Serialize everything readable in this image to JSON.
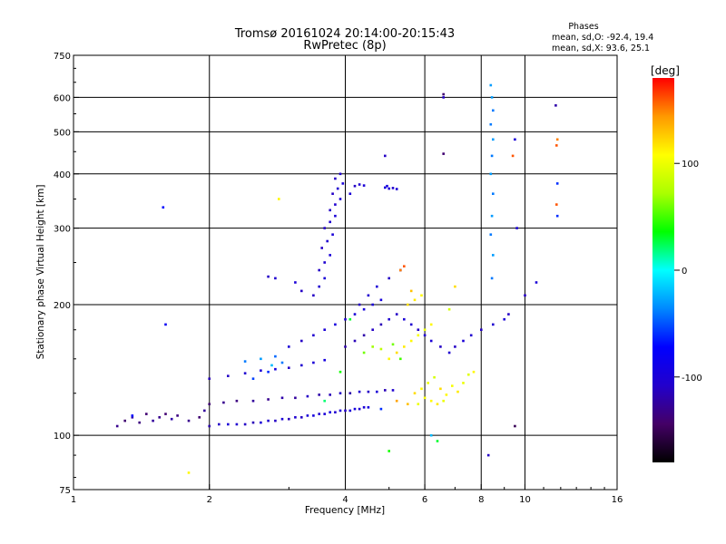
{
  "chart_data": {
    "type": "scatter",
    "title": "Tromsø 20161024 20:14:00-20:15:43",
    "subtitle": "RwPretec (8p)",
    "xlabel": "Frequency [MHz]",
    "ylabel": "Stationary phase Virtual Height [km]",
    "x_scale": "log",
    "y_scale": "log",
    "xlim": [
      1,
      16
    ],
    "ylim": [
      75,
      750
    ],
    "x_ticks": [
      1,
      2,
      4,
      6,
      8,
      10,
      16
    ],
    "y_ticks": [
      75,
      100,
      200,
      300,
      400,
      500,
      600,
      750
    ],
    "grid": true,
    "phases_box": {
      "title": "Phases",
      "line_o": "mean, sd,O:  -92.4, 19.4",
      "line_x": "mean, sd,X:  93.6, 25.1"
    },
    "colorbar": {
      "label": "[deg]",
      "ticks": [
        100,
        0,
        -100
      ],
      "range": [
        -180,
        180
      ],
      "colormap": "rainbow"
    },
    "series": [
      {
        "values": [
          [
            1.25,
            105,
            -130
          ],
          [
            1.3,
            108,
            -140
          ],
          [
            1.35,
            110,
            -120
          ],
          [
            1.4,
            107,
            -135
          ],
          [
            1.45,
            112,
            -140
          ],
          [
            1.5,
            108,
            -125
          ],
          [
            1.55,
            110,
            -130
          ],
          [
            1.6,
            112,
            -140
          ],
          [
            1.65,
            109,
            -120
          ],
          [
            1.7,
            111,
            -135
          ],
          [
            1.8,
            108,
            -130
          ],
          [
            1.9,
            110,
            -140
          ],
          [
            1.95,
            114,
            -125
          ],
          [
            1.35,
            111,
            -70
          ],
          [
            1.6,
            180,
            -80
          ],
          [
            1.58,
            335,
            -70
          ],
          [
            2.0,
            105,
            -120
          ],
          [
            2.1,
            106,
            -110
          ],
          [
            2.2,
            106,
            -100
          ],
          [
            2.3,
            106,
            -105
          ],
          [
            2.4,
            106,
            -110
          ],
          [
            2.5,
            107,
            -115
          ],
          [
            2.6,
            107,
            -100
          ],
          [
            2.7,
            108,
            -105
          ],
          [
            2.8,
            108,
            -110
          ],
          [
            2.9,
            109,
            -100
          ],
          [
            3.0,
            109,
            -115
          ],
          [
            3.1,
            110,
            -105
          ],
          [
            3.2,
            110,
            -110
          ],
          [
            3.3,
            111,
            -100
          ],
          [
            3.4,
            111,
            -95
          ],
          [
            3.5,
            112,
            -105
          ],
          [
            3.6,
            112,
            -100
          ],
          [
            3.7,
            113,
            -95
          ],
          [
            3.8,
            113,
            -105
          ],
          [
            3.9,
            114,
            -100
          ],
          [
            4.0,
            114,
            -110
          ],
          [
            4.1,
            114,
            -100
          ],
          [
            4.2,
            115,
            -95
          ],
          [
            4.3,
            115,
            -105
          ],
          [
            4.4,
            116,
            -100
          ],
          [
            4.5,
            116,
            -95
          ],
          [
            2.0,
            118,
            -140
          ],
          [
            2.15,
            119,
            -130
          ],
          [
            2.3,
            120,
            -135
          ],
          [
            2.5,
            120,
            -125
          ],
          [
            2.7,
            121,
            -130
          ],
          [
            2.9,
            122,
            -120
          ],
          [
            3.1,
            122,
            -125
          ],
          [
            3.3,
            123,
            -110
          ],
          [
            3.5,
            124,
            -120
          ],
          [
            3.7,
            124,
            -115
          ],
          [
            3.9,
            125,
            -110
          ],
          [
            4.1,
            125,
            -120
          ],
          [
            4.3,
            126,
            -105
          ],
          [
            4.5,
            126,
            -110
          ],
          [
            4.7,
            126,
            -100
          ],
          [
            4.9,
            127,
            -115
          ],
          [
            5.1,
            127,
            -105
          ],
          [
            2.0,
            135,
            -115
          ],
          [
            2.2,
            137,
            -110
          ],
          [
            2.4,
            139,
            -105
          ],
          [
            2.6,
            141,
            -100
          ],
          [
            2.8,
            142,
            -95
          ],
          [
            3.0,
            143,
            -110
          ],
          [
            3.2,
            145,
            -105
          ],
          [
            3.4,
            147,
            -100
          ],
          [
            3.6,
            149,
            -95
          ],
          [
            2.4,
            148,
            -40
          ],
          [
            2.6,
            150,
            -30
          ],
          [
            2.75,
            145,
            -20
          ],
          [
            2.9,
            147,
            -40
          ],
          [
            2.5,
            135,
            -55
          ],
          [
            2.7,
            140,
            -60
          ],
          [
            2.8,
            152,
            -45
          ],
          [
            3.0,
            160,
            -100
          ],
          [
            3.2,
            165,
            -110
          ],
          [
            3.4,
            170,
            -105
          ],
          [
            3.6,
            175,
            -100
          ],
          [
            3.8,
            180,
            -95
          ],
          [
            4.0,
            185,
            -105
          ],
          [
            4.2,
            190,
            -100
          ],
          [
            4.4,
            195,
            -95
          ],
          [
            4.6,
            200,
            -100
          ],
          [
            4.8,
            205,
            -95
          ],
          [
            3.4,
            210,
            -110
          ],
          [
            3.5,
            220,
            -105
          ],
          [
            3.6,
            230,
            -100
          ],
          [
            3.5,
            240,
            -110
          ],
          [
            3.6,
            250,
            -105
          ],
          [
            3.7,
            260,
            -100
          ],
          [
            3.55,
            270,
            -110
          ],
          [
            3.65,
            280,
            -105
          ],
          [
            3.75,
            290,
            -100
          ],
          [
            3.6,
            300,
            -110
          ],
          [
            3.7,
            310,
            -105
          ],
          [
            3.8,
            320,
            -100
          ],
          [
            3.7,
            330,
            -110
          ],
          [
            3.8,
            340,
            -105
          ],
          [
            3.9,
            350,
            -100
          ],
          [
            3.75,
            360,
            -110
          ],
          [
            3.85,
            370,
            -105
          ],
          [
            3.95,
            380,
            -100
          ],
          [
            3.8,
            390,
            -110
          ],
          [
            3.9,
            400,
            -105
          ],
          [
            4.2,
            375,
            -110
          ],
          [
            4.3,
            378,
            -105
          ],
          [
            4.4,
            376,
            -100
          ],
          [
            4.9,
            372,
            -95
          ],
          [
            5.0,
            370,
            -100
          ],
          [
            5.1,
            371,
            -105
          ],
          [
            5.2,
            369,
            -100
          ],
          [
            4.95,
            375,
            -95
          ],
          [
            4.9,
            440,
            -110
          ],
          [
            4.1,
            360,
            -100
          ],
          [
            2.7,
            232,
            -110
          ],
          [
            2.8,
            230,
            -105
          ],
          [
            3.1,
            225,
            -100
          ],
          [
            3.2,
            215,
            -110
          ],
          [
            4.0,
            160,
            -120
          ],
          [
            4.2,
            165,
            -115
          ],
          [
            4.4,
            170,
            -120
          ],
          [
            4.6,
            175,
            -110
          ],
          [
            4.8,
            180,
            -115
          ],
          [
            5.0,
            185,
            -105
          ],
          [
            5.2,
            190,
            -110
          ],
          [
            5.4,
            185,
            -100
          ],
          [
            5.6,
            180,
            -105
          ],
          [
            5.8,
            175,
            -110
          ],
          [
            6.0,
            170,
            -105
          ],
          [
            6.2,
            165,
            -100
          ],
          [
            6.5,
            160,
            -110
          ],
          [
            6.8,
            155,
            -105
          ],
          [
            7.0,
            160,
            -110
          ],
          [
            7.3,
            165,
            -100
          ],
          [
            7.6,
            170,
            -105
          ],
          [
            8.0,
            175,
            -110
          ],
          [
            8.5,
            180,
            -105
          ],
          [
            9.0,
            185,
            -100
          ],
          [
            9.2,
            190,
            -110
          ],
          [
            4.3,
            200,
            -110
          ],
          [
            4.5,
            210,
            -105
          ],
          [
            4.7,
            220,
            -100
          ],
          [
            5.0,
            230,
            -110
          ],
          [
            5.3,
            240,
            -105
          ],
          [
            6.6,
            600,
            -110
          ],
          [
            6.6,
            610,
            -140
          ],
          [
            6.6,
            445,
            -140
          ],
          [
            8.4,
            640,
            -30
          ],
          [
            8.45,
            600,
            -30
          ],
          [
            8.5,
            560,
            -40
          ],
          [
            8.4,
            520,
            -40
          ],
          [
            8.5,
            480,
            -30
          ],
          [
            8.45,
            440,
            -40
          ],
          [
            8.4,
            400,
            -30
          ],
          [
            8.5,
            360,
            -40
          ],
          [
            8.45,
            320,
            -30
          ],
          [
            8.4,
            290,
            -40
          ],
          [
            8.5,
            260,
            -30
          ],
          [
            8.45,
            230,
            -40
          ],
          [
            9.5,
            480,
            -100
          ],
          [
            9.4,
            440,
            160
          ],
          [
            9.6,
            300,
            -100
          ],
          [
            9.5,
            105,
            -150
          ],
          [
            11.7,
            575,
            -120
          ],
          [
            11.8,
            480,
            150
          ],
          [
            11.75,
            465,
            160
          ],
          [
            11.8,
            380,
            -60
          ],
          [
            11.75,
            340,
            160
          ],
          [
            11.8,
            320,
            -60
          ],
          [
            10.6,
            225,
            -100
          ],
          [
            10.0,
            210,
            -110
          ],
          [
            8.3,
            90,
            -110
          ],
          [
            5.0,
            92,
            40
          ],
          [
            6.2,
            100,
            -20
          ],
          [
            6.4,
            97,
            30
          ],
          [
            4.8,
            115,
            -60
          ],
          [
            5.2,
            120,
            140
          ],
          [
            5.5,
            118,
            130
          ],
          [
            5.7,
            125,
            120
          ],
          [
            5.9,
            128,
            110
          ],
          [
            6.1,
            132,
            100
          ],
          [
            6.3,
            136,
            90
          ],
          [
            6.5,
            128,
            120
          ],
          [
            6.7,
            124,
            110
          ],
          [
            6.9,
            130,
            105
          ],
          [
            7.1,
            126,
            115
          ],
          [
            7.3,
            132,
            100
          ],
          [
            7.5,
            138,
            95
          ],
          [
            7.7,
            140,
            110
          ],
          [
            5.8,
            118,
            100
          ],
          [
            6.0,
            122,
            105
          ],
          [
            6.2,
            120,
            110
          ],
          [
            6.4,
            118,
            115
          ],
          [
            6.6,
            120,
            100
          ],
          [
            5.0,
            150,
            110
          ],
          [
            5.2,
            155,
            120
          ],
          [
            5.4,
            160,
            115
          ],
          [
            5.6,
            165,
            110
          ],
          [
            5.8,
            170,
            105
          ],
          [
            6.0,
            175,
            100
          ],
          [
            6.2,
            180,
            110
          ],
          [
            5.5,
            200,
            120
          ],
          [
            5.7,
            205,
            115
          ],
          [
            5.9,
            210,
            110
          ],
          [
            5.3,
            240,
            150
          ],
          [
            5.4,
            245,
            160
          ],
          [
            5.6,
            215,
            130
          ],
          [
            7.0,
            220,
            120
          ],
          [
            6.8,
            195,
            90
          ],
          [
            4.6,
            160,
            70
          ],
          [
            4.8,
            158,
            80
          ],
          [
            5.1,
            162,
            60
          ],
          [
            5.3,
            150,
            50
          ],
          [
            4.4,
            155,
            60
          ],
          [
            2.85,
            350,
            110
          ],
          [
            1.8,
            82,
            110
          ],
          [
            3.6,
            120,
            20
          ],
          [
            3.9,
            140,
            40
          ],
          [
            4.1,
            185,
            30
          ]
        ]
      }
    ]
  },
  "colors": {
    "background": "#ffffff",
    "axes": "#000000",
    "grid": "#000000",
    "colormap_stops": [
      "#000000",
      "#440066",
      "#2200cc",
      "#0000ff",
      "#0088ff",
      "#00ffff",
      "#00ff00",
      "#aaff00",
      "#ffff00",
      "#ff9900",
      "#ff0000"
    ]
  }
}
